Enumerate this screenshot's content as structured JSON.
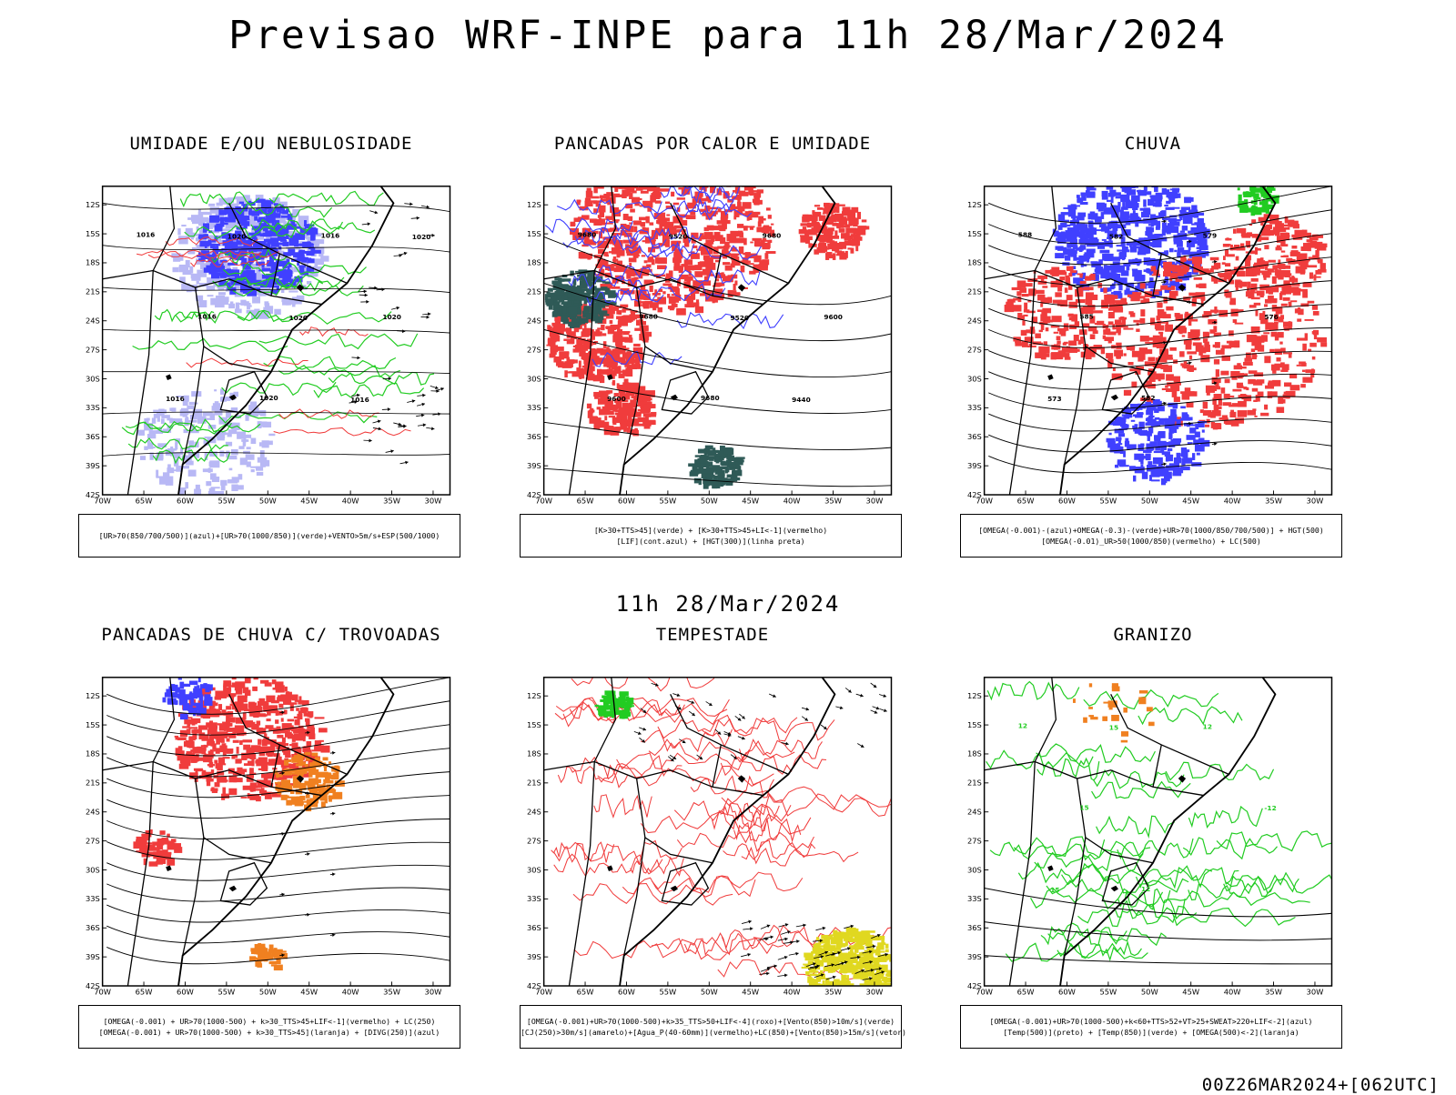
{
  "header": {
    "title": "Previsao WRF-INPE  para 11h 28/Mar/2024",
    "mid_date": "11h 28/Mar/2024",
    "run_stamp": "00Z26MAR2024+[062UTC]"
  },
  "colors": {
    "blue": "#4040ff",
    "light_blue": "#b8b8f5",
    "green": "#22cc22",
    "red": "#f03c3c",
    "teal": "#2f5a57",
    "orange": "#f08020",
    "yellow": "#e0d820",
    "black": "#000000"
  },
  "axes": {
    "lat_labels": [
      "12S",
      "15S",
      "18S",
      "21S",
      "24S",
      "27S",
      "30S",
      "33S",
      "36S",
      "39S",
      "42S"
    ],
    "lon_labels": [
      "70W",
      "65W",
      "60W",
      "55W",
      "50W",
      "45W",
      "40W",
      "35W",
      "30W"
    ]
  },
  "panels": [
    {
      "id": "umidade",
      "title": "UMIDADE E/OU NEBULOSIDADE",
      "legend": [
        "[UR>70(850/700/500)](azul)+[UR>70(1000/850)](verde)+VENTO>5m/s+ESP(500/1000)"
      ],
      "contour_labels": [
        "1016",
        "1016",
        "1020",
        "1016",
        "1020",
        "1016",
        "1020",
        "1020",
        "1016",
        "1020"
      ]
    },
    {
      "id": "pancadas",
      "title": "PANCADAS POR CALOR E UMIDADE",
      "legend": [
        "[K>30+TTS>45](verde) + [K>30+TTS>45+LI<-1](vermelho)",
        "[LIF](cont.azul) + [HGT(300)](linha preta)"
      ],
      "contour_labels": [
        "9680",
        "9680",
        "9680",
        "9680",
        "9600",
        "9600",
        "9520",
        "9520",
        "9440"
      ]
    },
    {
      "id": "chuva",
      "title": "CHUVA",
      "legend": [
        "[OMEGA(-0.001)-(azul)+OMEGA(-0.3)-(verde)+UR>70(1000/850/700/500)] + HGT(500)",
        "[OMEGA(-0.01)_UR>50(1000/850)(vermelho) + LC(500)"
      ],
      "contour_labels": [
        "588",
        "585",
        "582",
        "579",
        "576",
        "573",
        "582"
      ]
    },
    {
      "id": "trovoadas",
      "title": "PANCADAS DE CHUVA C/ TROVOADAS",
      "legend": [
        "[OMEGA(-0.001) + UR>70(1000-500) + k>30_TTS>45+LIF<-1](vermelho) + LC(250)",
        "[OMEGA(-0.001) + UR>70(1000-500) + k>30_TTS>45](laranja) + [DIVG(250)](azul)"
      ],
      "contour_labels": []
    },
    {
      "id": "tempestade",
      "title": "TEMPESTADE",
      "legend": [
        "[OMEGA(-0.001)+UR>70(1000-500)+k>35_TTS>50+LIF<-4](roxo)+[Vento(850)>10m/s](verde)",
        "[CJ(250)>30m/s](amarelo)+[Agua_P(40-60mm)](vermelho)+LC(850)+[Vento(850)>15m/s](vetor)"
      ],
      "contour_labels": []
    },
    {
      "id": "granizo",
      "title": "GRANIZO",
      "legend": [
        "[OMEGA(-0.001)+UR>70(1000-500)+k<60+TTS>52+VT>25+SWEAT>220+LIF<-2](azul)",
        "[Temp(500)](preto) + [Temp(850)](verde) + [OMEGA(500)<-2](laranja)"
      ],
      "contour_labels": [
        "12",
        "15",
        "12",
        "12",
        "-12",
        "-15",
        "15"
      ]
    }
  ]
}
